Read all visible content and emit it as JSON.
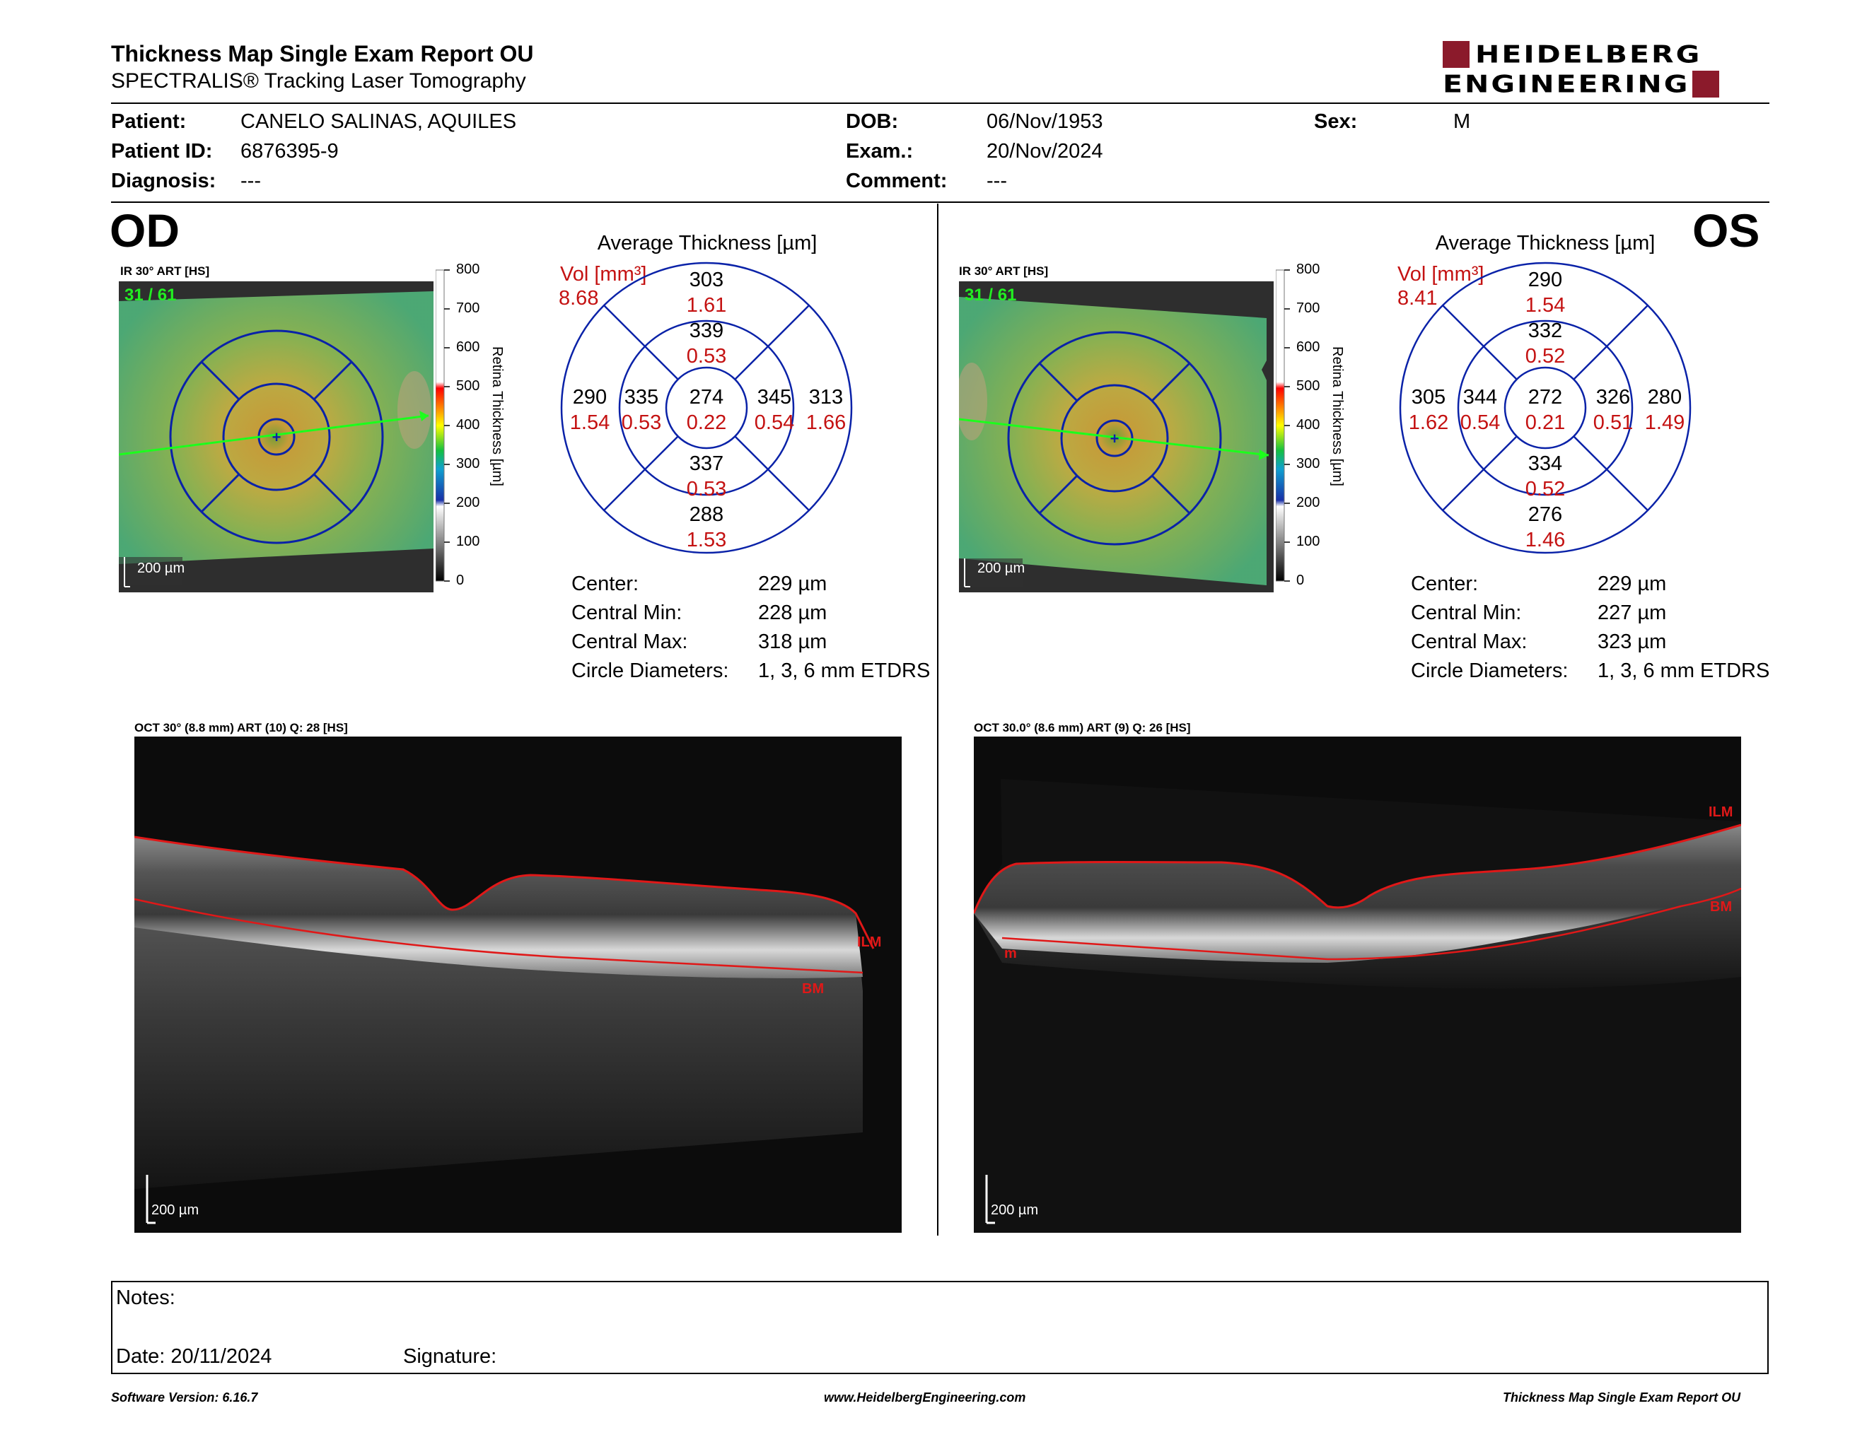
{
  "header": {
    "title": "Thickness Map Single Exam Report OU",
    "subtitle": "SPECTRALIS® Tracking Laser Tomography",
    "logo_line1": "HEIDELBERG",
    "logo_line2": "ENGINEERING",
    "brand_color": "#8b1a2b"
  },
  "patient": {
    "patient_label": "Patient:",
    "patient_value": "CANELO SALINAS, AQUILES",
    "id_label": "Patient ID:",
    "id_value": "6876395-9",
    "diagnosis_label": "Diagnosis:",
    "diagnosis_value": "---",
    "dob_label": "DOB:",
    "dob_value": "06/Nov/1953",
    "exam_label": "Exam.:",
    "exam_value": "20/Nov/2024",
    "comment_label": "Comment:",
    "comment_value": "---",
    "sex_label": "Sex:",
    "sex_value": "M"
  },
  "colorbar": {
    "axis_label": "Retina Thickness [µm]",
    "ticks": [
      "800",
      "700",
      "600",
      "500",
      "400",
      "300",
      "200",
      "100",
      "0"
    ]
  },
  "od": {
    "eye_label": "OD",
    "fundus_title": "IR 30° ART [HS]",
    "frame_counter": "31 / 61",
    "scale_label": "200 µm",
    "grid_title": "Average Thickness [µm]",
    "vol_label": "Vol [mm³]",
    "vol_total": "8.68",
    "sectors": {
      "outer_sup": {
        "t": "303",
        "v": "1.61"
      },
      "inner_sup": {
        "t": "339",
        "v": "0.53"
      },
      "outer_left": {
        "t": "290",
        "v": "1.54"
      },
      "inner_left": {
        "t": "335",
        "v": "0.53"
      },
      "center": {
        "t": "274",
        "v": "0.22"
      },
      "inner_right": {
        "t": "345",
        "v": "0.54"
      },
      "outer_right": {
        "t": "313",
        "v": "1.66"
      },
      "inner_inf": {
        "t": "337",
        "v": "0.53"
      },
      "outer_inf": {
        "t": "288",
        "v": "1.53"
      }
    },
    "stats": {
      "center_label": "Center:",
      "center_value": "229 µm",
      "min_label": "Central Min:",
      "min_value": "228 µm",
      "max_label": "Central Max:",
      "max_value": "318 µm",
      "diam_label": "Circle Diameters:",
      "diam_value": "1, 3, 6 mm ETDRS"
    },
    "oct_title": "OCT 30° (8.8 mm) ART (10) Q: 28 [HS]",
    "oct_scale": "200 µm",
    "layer_ilm": "ILM",
    "layer_bm": "BM"
  },
  "os": {
    "eye_label": "OS",
    "fundus_title": "IR 30° ART [HS]",
    "frame_counter": "31 / 61",
    "scale_label": "200 µm",
    "grid_title": "Average Thickness [µm]",
    "vol_label": "Vol [mm³]",
    "vol_total": "8.41",
    "sectors": {
      "outer_sup": {
        "t": "290",
        "v": "1.54"
      },
      "inner_sup": {
        "t": "332",
        "v": "0.52"
      },
      "outer_left": {
        "t": "305",
        "v": "1.62"
      },
      "inner_left": {
        "t": "344",
        "v": "0.54"
      },
      "center": {
        "t": "272",
        "v": "0.21"
      },
      "inner_right": {
        "t": "326",
        "v": "0.51"
      },
      "outer_right": {
        "t": "280",
        "v": "1.49"
      },
      "inner_inf": {
        "t": "334",
        "v": "0.52"
      },
      "outer_inf": {
        "t": "276",
        "v": "1.46"
      }
    },
    "stats": {
      "center_label": "Center:",
      "center_value": "229 µm",
      "min_label": "Central Min:",
      "min_value": "227 µm",
      "max_label": "Central Max:",
      "max_value": "323 µm",
      "diam_label": "Circle Diameters:",
      "diam_value": "1, 3, 6 mm ETDRS"
    },
    "oct_title": "OCT 30.0° (8.6 mm) ART (9) Q: 26 [HS]",
    "oct_scale": "200 µm",
    "layer_ilm": "ILM",
    "layer_bm": "BM",
    "layer_m": "m"
  },
  "notes": {
    "notes_label": "Notes:",
    "date_label": "Date: 20/11/2024",
    "signature_label": "Signature:"
  },
  "footer": {
    "software": "Software Version: 6.16.7",
    "website": "www.HeidelbergEngineering.com",
    "report_name": "Thickness Map Single Exam Report OU"
  }
}
